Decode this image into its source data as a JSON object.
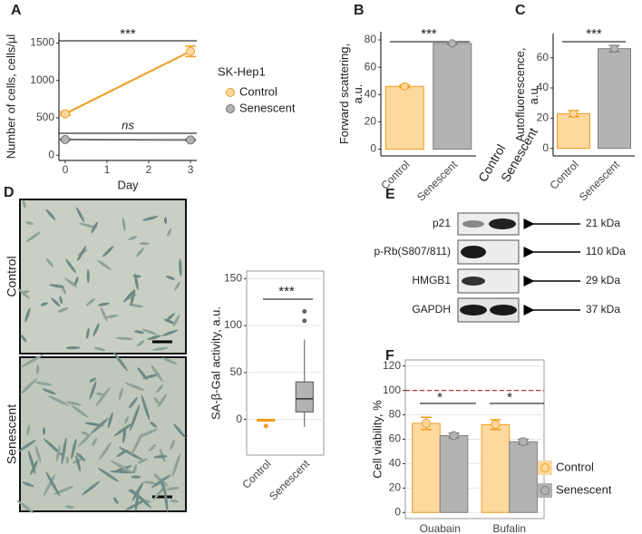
{
  "chart_data": [
    {
      "type": "line",
      "panel": "A",
      "x": [
        0,
        3
      ],
      "xlim": [
        -0.15,
        3.15
      ],
      "xticks": [
        0,
        1,
        2,
        3
      ],
      "ylim": [
        -70,
        1640
      ],
      "yticks": [
        0,
        500,
        1000,
        1500
      ],
      "xlabel": "Day",
      "ylabel": [
        "Number of cells, cells/µl"
      ],
      "legend_title": "SK-Hep1",
      "legend": "right",
      "series": [
        {
          "name": "Control",
          "color": "#f39c1f",
          "fill": "#fdd9a0",
          "values": [
            555,
            1390
          ],
          "errors": [
            20,
            70
          ]
        },
        {
          "name": "Senescent",
          "color": "#707070",
          "fill": "#b3b3b3",
          "values": [
            210,
            205
          ],
          "errors": [
            10,
            10
          ]
        }
      ],
      "annotations": [
        "***",
        "ns"
      ]
    },
    {
      "type": "bar",
      "panel": "B",
      "categories": [
        "Control",
        "Senescent"
      ],
      "values": [
        46,
        77.5
      ],
      "errors": [
        1,
        0.8
      ],
      "colors": [
        "#fdd9a0",
        "#b3b3b3"
      ],
      "edge_colors": [
        "#f39c1f",
        "#7f7f7f"
      ],
      "ylim": [
        -5,
        86
      ],
      "yticks": [
        0,
        20,
        40,
        60,
        80
      ],
      "ylabel": [
        "Forward scattering,",
        "a.u."
      ],
      "annotations": [
        "***"
      ]
    },
    {
      "type": "bar",
      "panel": "C",
      "categories": [
        "Control",
        "Senescent"
      ],
      "values": [
        23,
        66
      ],
      "errors": [
        2,
        2
      ],
      "colors": [
        "#fdd9a0",
        "#b3b3b3"
      ],
      "edge_colors": [
        "#f39c1f",
        "#7f7f7f"
      ],
      "ylim": [
        -5,
        76
      ],
      "yticks": [
        0,
        20,
        40,
        60
      ],
      "ylabel": [
        "Autofluorescence,",
        "a.u."
      ],
      "annotations": [
        "***"
      ]
    },
    {
      "type": "box",
      "categories": [
        "Control",
        "Senescent"
      ],
      "colors": [
        "#f39c1f",
        "#b3b3b3"
      ],
      "edge_colors": [
        "#f39c1f",
        "#555555"
      ],
      "boxes": [
        {
          "whislo": -2,
          "q1": -1,
          "med": 0,
          "q3": 0,
          "whishi": 0,
          "fliers": [
            -7
          ]
        },
        {
          "whislo": -8,
          "q1": 8,
          "med": 22,
          "q3": 40,
          "whishi": 85,
          "fliers": [
            105,
            115
          ]
        }
      ],
      "ylim": [
        -38,
        158
      ],
      "yticks": [
        0,
        50,
        100,
        150
      ],
      "grid": true,
      "frame": true,
      "ylabel": [
        "SA-β-Gal activity, a.u."
      ],
      "annotations": [
        "***"
      ]
    },
    {
      "type": "bar",
      "panel": "F",
      "categories": [
        "Ouabain",
        "Bufalin"
      ],
      "ylim": [
        -5,
        125
      ],
      "yticks": [
        0,
        20,
        40,
        60,
        80,
        100,
        120
      ],
      "grid": true,
      "frame": true,
      "ylabel": [
        "Cell viability, %"
      ],
      "legend": "right",
      "reference_line": 100,
      "reference_color": "#c0392b",
      "series": [
        {
          "name": "Control",
          "color": "#fdd9a0",
          "edge": "#f39c1f",
          "values": [
            73,
            72
          ],
          "errors": [
            5,
            4
          ]
        },
        {
          "name": "Senescent",
          "color": "#b3b3b3",
          "edge": "#7f7f7f",
          "values": [
            63,
            58
          ],
          "errors": [
            2,
            2
          ]
        }
      ],
      "annotations": [
        "*",
        "*"
      ]
    }
  ],
  "micrographs": {
    "panel": "D",
    "labels": [
      "Control",
      "Senescent"
    ]
  },
  "blot": {
    "panel": "E",
    "columns": [
      "Control",
      "Senescent"
    ],
    "rows": [
      {
        "label": "p21",
        "size": "21 kDa"
      },
      {
        "label": "p-Rb(S807/811)",
        "size": "110 kDa"
      },
      {
        "label": "HMGB1",
        "size": "29 kDa"
      },
      {
        "label": "GAPDH",
        "size": "37 kDa"
      }
    ]
  }
}
